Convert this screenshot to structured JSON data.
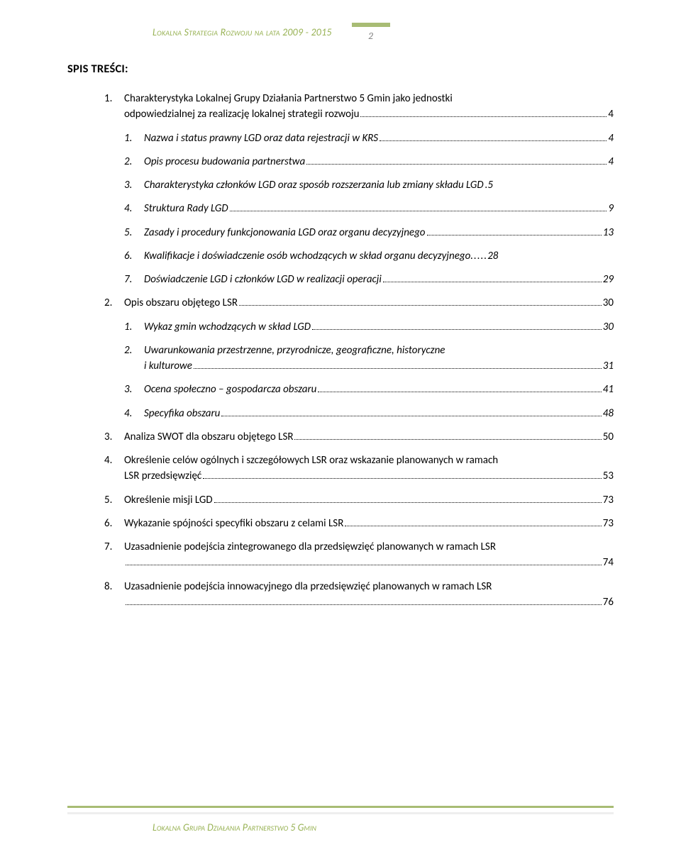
{
  "header": {
    "title": "Lokalna Strategia Rozwoju na lata 2009 - 2015",
    "page_num": "2",
    "bar_color": "#a8bc74",
    "title_color": "#98b254"
  },
  "toc_heading": "SPIS TREŚCI:",
  "items": [
    {
      "num": "1.",
      "text1": "Charakterystyka Lokalnej Grupy Działania Partnerstwo 5 Gmin jako jednostki",
      "text2": "odpowiedzialnej za realizację lokalnej strategii rozwoju",
      "page": "4",
      "multiline": true,
      "sub": [
        {
          "num": "1.",
          "text": "Nazwa i status prawny LGD oraz data rejestracji w KRS",
          "page": "4"
        },
        {
          "num": "2.",
          "text": "Opis procesu budowania partnerstwa",
          "page": "4"
        },
        {
          "num": "3.",
          "text": "Charakterystyka członków LGD oraz sposób rozszerzania lub zmiany składu LGD",
          "page": ".5",
          "nodots": true
        },
        {
          "num": "4.",
          "text": "Struktura Rady LGD",
          "page": "9"
        },
        {
          "num": "5.",
          "text": "Zasady i procedury funkcjonowania LGD oraz organu decyzyjnego",
          "page": "13"
        },
        {
          "num": "6.",
          "text": "Kwalifikacje i doświadczenie osób wchodzących w skład organu decyzyjnego",
          "page": "28",
          "tight": true
        },
        {
          "num": "7.",
          "text": "Doświadczenie LGD i członków LGD w realizacji operacji",
          "page": "29"
        }
      ]
    },
    {
      "num": "2.",
      "text": "Opis obszaru objętego LSR",
      "page": "30",
      "sub": [
        {
          "num": "1.",
          "text": "Wykaz gmin wchodzących w skład LGD",
          "page": "30"
        },
        {
          "num": "2.",
          "text1": "Uwarunkowania przestrzenne, przyrodnicze, geograficzne, historyczne",
          "text2": "i kulturowe",
          "page": "31",
          "multiline": true
        },
        {
          "num": "3.",
          "text": "Ocena społeczno – gospodarcza obszaru",
          "page": "41"
        },
        {
          "num": "4.",
          "text": "Specyfika obszaru",
          "page": "48"
        }
      ]
    },
    {
      "num": "3.",
      "text": "Analiza SWOT dla obszaru objętego LSR",
      "page": "50"
    },
    {
      "num": "4.",
      "text1": "Określenie celów ogólnych i szczegółowych LSR oraz wskazanie planowanych w ramach",
      "text2": "LSR przedsięwzięć",
      "page": "53",
      "multiline": true
    },
    {
      "num": "5.",
      "text": "Określenie misji LGD",
      "page": "73"
    },
    {
      "num": "6.",
      "text": "Wykazanie spójności specyfiki obszaru z celami LSR",
      "page": "73"
    },
    {
      "num": "7.",
      "text1": "Uzasadnienie podejścia zintegrowanego dla przedsięwzięć planowanych w ramach LSR",
      "text2": "",
      "page": "74",
      "multiline": true,
      "line2dotsonly": true
    },
    {
      "num": "8.",
      "text1": "Uzasadnienie podejścia innowacyjnego dla przedsięwzięć planowanych w ramach LSR",
      "text2": "",
      "page": "76",
      "multiline": true,
      "line2dotsonly": true
    }
  ],
  "footer": {
    "text": "Lokalna Grupa Działania Partnerstwo 5 Gmin",
    "bar_color": "#a8bc74"
  }
}
